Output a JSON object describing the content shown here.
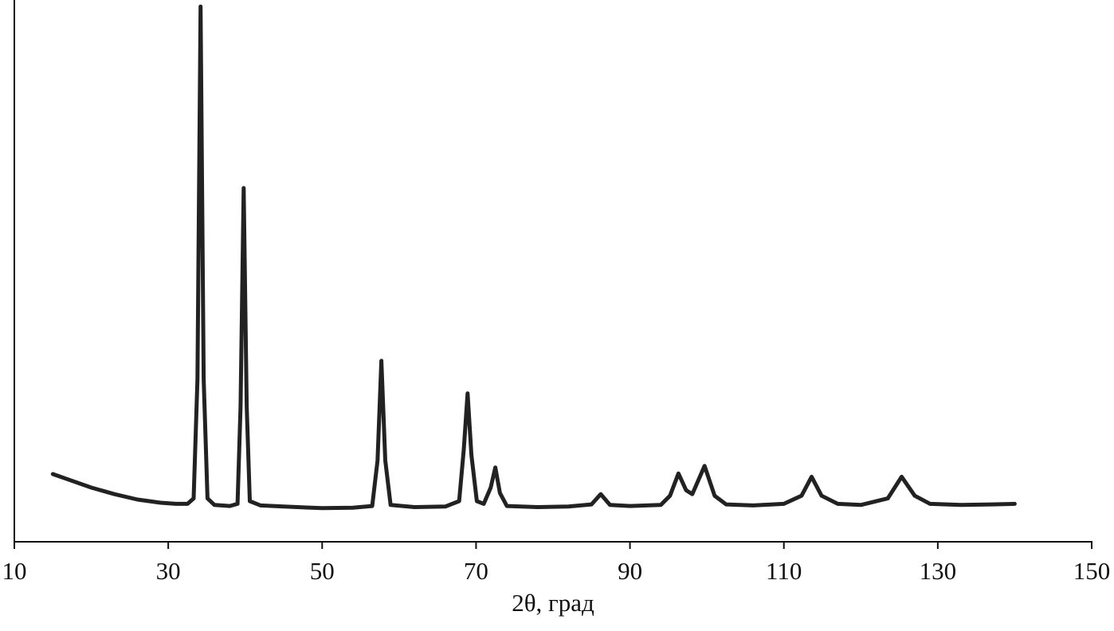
{
  "chart_data": {
    "type": "line",
    "x_label": "2θ, град",
    "xlim": [
      10,
      150
    ],
    "xticks": [
      10,
      30,
      50,
      70,
      90,
      110,
      130,
      150
    ],
    "ylim": [
      0,
      100
    ],
    "x": [
      15,
      17,
      20,
      23,
      26,
      29,
      31,
      32.5,
      33.3,
      33.8,
      34.2,
      34.6,
      35.1,
      36,
      38,
      39,
      39.4,
      39.8,
      40.2,
      40.6,
      42,
      45,
      50,
      54,
      56.5,
      57.2,
      57.7,
      58.2,
      58.9,
      62,
      66,
      67.8,
      68.4,
      68.9,
      69.4,
      70.1,
      71,
      71.9,
      72.5,
      73.1,
      74,
      78,
      82,
      85,
      86.2,
      87.4,
      90,
      94,
      95.2,
      96.3,
      97.3,
      98.1,
      99.7,
      101,
      102.5,
      106,
      110,
      112.3,
      113.6,
      114.9,
      117,
      120,
      123.5,
      125.3,
      127,
      129,
      133,
      137,
      140
    ],
    "series": [
      {
        "color": "#222222",
        "values": [
          12.5,
          11.5,
          10,
          8.8,
          7.8,
          7.2,
          7,
          7,
          8,
          30,
          98.8,
          30,
          8,
          6.8,
          6.6,
          7,
          25,
          65.3,
          25,
          7.5,
          6.7,
          6.5,
          6.2,
          6.3,
          6.6,
          15,
          33.4,
          15,
          6.8,
          6.4,
          6.5,
          7.5,
          17,
          27.4,
          16,
          7.5,
          7,
          10,
          13.7,
          9,
          6.6,
          6.4,
          6.5,
          6.9,
          8.8,
          6.8,
          6.6,
          6.8,
          8.5,
          12.6,
          9.5,
          8.8,
          14,
          8.5,
          6.9,
          6.7,
          7,
          8.5,
          12,
          8.5,
          7,
          6.8,
          8,
          12,
          8.5,
          7,
          6.8,
          6.9,
          7
        ]
      }
    ]
  }
}
